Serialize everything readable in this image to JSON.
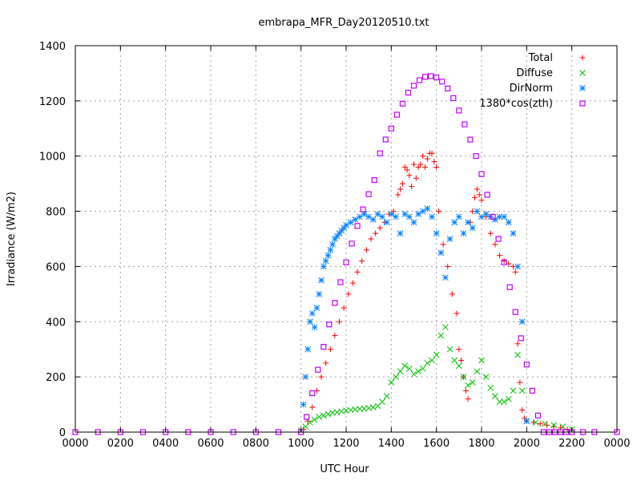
{
  "chart_data": {
    "type": "scatter",
    "title": "embrapa_MFR_Day20120510.txt",
    "xlabel": "UTC Hour",
    "ylabel": "Irradiance (W/m2)",
    "xlim": [
      0,
      24
    ],
    "ylim": [
      0,
      1400
    ],
    "x_ticks": [
      "0000",
      "0200",
      "0400",
      "0600",
      "0800",
      "1000",
      "1200",
      "1400",
      "1600",
      "1800",
      "2000",
      "2200",
      "0000"
    ],
    "y_ticks": [
      0,
      200,
      400,
      600,
      800,
      1000,
      1200,
      1400
    ],
    "grid": true,
    "legend_position": "top-right",
    "series": [
      {
        "name": "Total",
        "marker": "plus",
        "color": "#ff0000",
        "x": [
          10.1,
          10.3,
          10.5,
          10.7,
          10.9,
          11.1,
          11.3,
          11.5,
          11.7,
          11.9,
          12.1,
          12.3,
          12.5,
          12.7,
          12.9,
          13.1,
          13.3,
          13.5,
          13.7,
          13.9,
          14.1,
          14.3,
          14.4,
          14.5,
          14.6,
          14.7,
          14.8,
          14.9,
          15.0,
          15.1,
          15.2,
          15.3,
          15.4,
          15.5,
          15.6,
          15.7,
          15.8,
          15.9,
          16.0,
          16.1,
          16.3,
          16.5,
          16.7,
          16.9,
          17.0,
          17.1,
          17.2,
          17.3,
          17.4,
          17.5,
          17.6,
          17.7,
          17.8,
          17.9,
          18.0,
          18.2,
          18.4,
          18.6,
          18.8,
          19.0,
          19.2,
          19.4,
          19.5,
          19.6,
          19.7,
          19.8,
          19.9,
          20.0,
          20.3,
          20.6,
          20.9,
          21.2,
          21.5,
          21.8
        ],
        "y": [
          10,
          40,
          90,
          150,
          200,
          250,
          300,
          350,
          400,
          450,
          500,
          540,
          580,
          620,
          660,
          700,
          720,
          740,
          760,
          790,
          800,
          860,
          880,
          900,
          960,
          950,
          930,
          890,
          970,
          920,
          960,
          970,
          1000,
          960,
          990,
          1010,
          1010,
          980,
          960,
          800,
          680,
          600,
          500,
          430,
          300,
          260,
          200,
          150,
          120,
          760,
          800,
          850,
          880,
          860,
          840,
          780,
          720,
          680,
          640,
          620,
          610,
          600,
          580,
          320,
          180,
          80,
          50,
          40,
          35,
          30,
          25,
          20,
          15,
          10
        ]
      },
      {
        "name": "Diffuse",
        "marker": "cross",
        "color": "#00c000",
        "x": [
          10.0,
          10.2,
          10.4,
          10.6,
          10.8,
          11.0,
          11.2,
          11.4,
          11.6,
          11.8,
          12.0,
          12.2,
          12.4,
          12.6,
          12.8,
          13.0,
          13.2,
          13.4,
          13.6,
          13.8,
          14.0,
          14.2,
          14.4,
          14.6,
          14.8,
          15.0,
          15.2,
          15.4,
          15.6,
          15.8,
          16.0,
          16.2,
          16.4,
          16.6,
          16.8,
          17.0,
          17.2,
          17.4,
          17.6,
          17.8,
          18.0,
          18.2,
          18.4,
          18.6,
          18.8,
          19.0,
          19.2,
          19.4,
          19.6,
          19.8,
          20.0,
          20.4,
          20.8,
          21.2,
          21.6,
          22.0
        ],
        "y": [
          5,
          20,
          35,
          45,
          55,
          60,
          65,
          70,
          72,
          75,
          78,
          80,
          82,
          84,
          85,
          87,
          90,
          95,
          110,
          130,
          180,
          200,
          220,
          240,
          230,
          210,
          220,
          230,
          250,
          260,
          280,
          350,
          380,
          300,
          260,
          240,
          200,
          170,
          180,
          220,
          260,
          200,
          160,
          130,
          110,
          110,
          120,
          150,
          280,
          150,
          40,
          35,
          30,
          25,
          20,
          10
        ]
      },
      {
        "name": "DirNorm",
        "marker": "star",
        "color": "#0080ff",
        "x": [
          10.1,
          10.2,
          10.3,
          10.4,
          10.5,
          10.6,
          10.7,
          10.8,
          10.9,
          11.0,
          11.1,
          11.2,
          11.3,
          11.4,
          11.5,
          11.6,
          11.7,
          11.8,
          11.9,
          12.0,
          12.2,
          12.4,
          12.6,
          12.8,
          13.0,
          13.2,
          13.4,
          13.6,
          13.8,
          14.0,
          14.2,
          14.4,
          14.6,
          14.8,
          15.0,
          15.2,
          15.4,
          15.6,
          15.8,
          16.0,
          16.2,
          16.4,
          16.6,
          16.8,
          17.0,
          17.2,
          17.4,
          17.6,
          17.8,
          18.0,
          18.2,
          18.4,
          18.6,
          18.8,
          19.0,
          19.2,
          19.4,
          19.6,
          19.8,
          20.0
        ],
        "y": [
          100,
          200,
          300,
          400,
          430,
          380,
          450,
          500,
          550,
          600,
          620,
          640,
          660,
          680,
          700,
          710,
          720,
          730,
          740,
          750,
          760,
          770,
          780,
          790,
          780,
          770,
          790,
          780,
          760,
          790,
          780,
          720,
          790,
          780,
          760,
          790,
          800,
          810,
          780,
          720,
          650,
          560,
          700,
          760,
          780,
          720,
          760,
          740,
          800,
          780,
          790,
          780,
          770,
          780,
          780,
          760,
          720,
          600,
          400,
          40
        ]
      },
      {
        "name": "1380*cos(zth)",
        "marker": "square",
        "color": "#c000ff",
        "x": [
          0,
          1,
          2,
          3,
          4,
          5,
          6,
          7,
          8,
          9,
          10,
          10.25,
          10.5,
          10.75,
          11,
          11.25,
          11.5,
          11.75,
          12,
          12.25,
          12.5,
          12.75,
          13,
          13.25,
          13.5,
          13.75,
          14,
          14.25,
          14.5,
          14.75,
          15,
          15.25,
          15.5,
          15.75,
          16,
          16.25,
          16.5,
          16.75,
          17,
          17.25,
          17.5,
          17.75,
          18,
          18.25,
          18.5,
          18.75,
          19,
          19.25,
          19.5,
          19.75,
          20,
          20.25,
          20.5,
          20.75,
          21,
          21.25,
          21.5,
          21.75,
          22,
          22.5,
          23,
          24
        ],
        "y": [
          0,
          0,
          0,
          0,
          0,
          0,
          0,
          0,
          0,
          0,
          0,
          55,
          141,
          226,
          309,
          390,
          468,
          543,
          615,
          683,
          747,
          807,
          862,
          913,
          1010,
          1060,
          1100,
          1150,
          1190,
          1230,
          1255,
          1275,
          1287,
          1290,
          1285,
          1270,
          1245,
          1210,
          1165,
          1115,
          1060,
          1000,
          935,
          860,
          780,
          700,
          615,
          525,
          435,
          340,
          245,
          150,
          60,
          0,
          0,
          0,
          0,
          0,
          0,
          0,
          0,
          0
        ]
      }
    ]
  }
}
